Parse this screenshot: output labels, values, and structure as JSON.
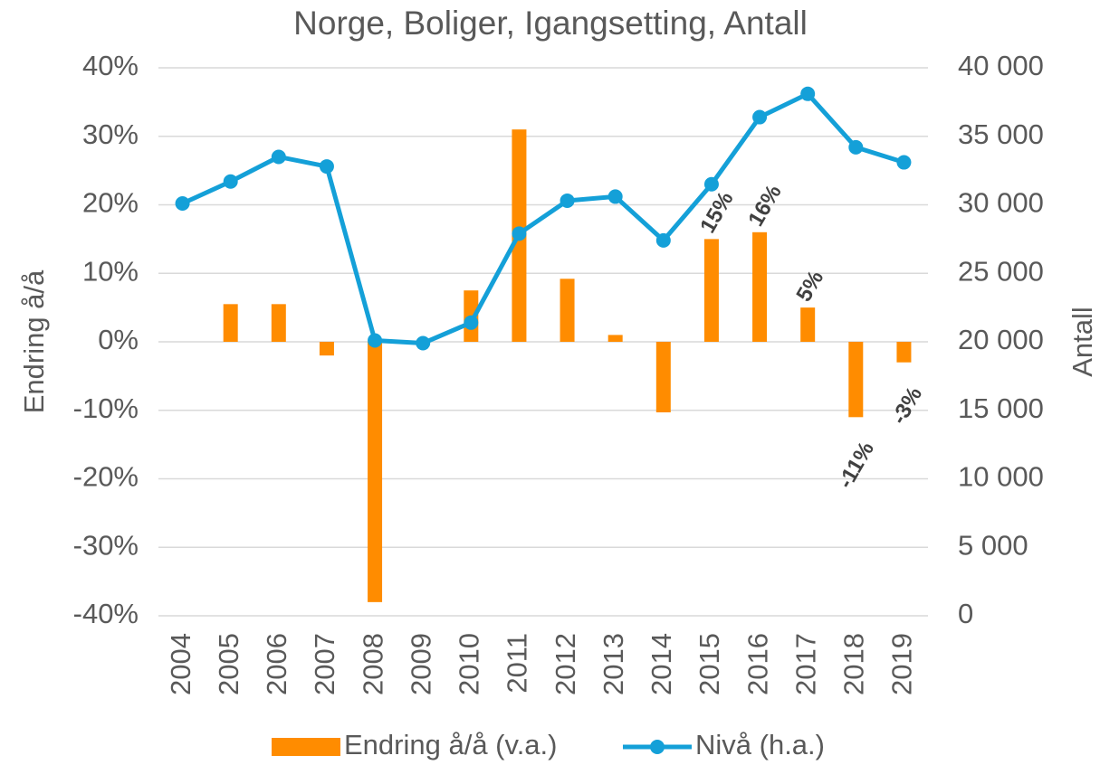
{
  "chart_data": {
    "type": "bar",
    "title": "Norge, Boliger, Igangsetting, Antall",
    "y_label": "Endring å/å",
    "y2_label": "Antall",
    "categories": [
      "2004",
      "2005",
      "2006",
      "2007",
      "2008",
      "2009",
      "2010",
      "2011",
      "2012",
      "2013",
      "2014",
      "2015",
      "2016",
      "2017",
      "2018",
      "2019"
    ],
    "series": [
      {
        "name": "Endring å/å (v.a.)",
        "type": "bar",
        "color": "#ff8c00",
        "values": [
          null,
          5.5,
          5.5,
          -2,
          -38,
          0,
          7.5,
          31,
          9.2,
          1,
          -10.3,
          15,
          16,
          5,
          -11,
          -3
        ],
        "value_labels": [
          null,
          null,
          null,
          null,
          null,
          null,
          null,
          null,
          null,
          null,
          null,
          "15%",
          "16%",
          "5%",
          "-11%",
          "-3%"
        ]
      },
      {
        "name": "Nivå (h.a.)",
        "type": "line",
        "axis": "y2",
        "color": "#14a0d8",
        "values": [
          30100,
          31700,
          33500,
          32800,
          20100,
          19900,
          21400,
          27900,
          30300,
          30600,
          27400,
          31500,
          36400,
          38100,
          34200,
          33100
        ]
      }
    ],
    "ylim": [
      -40,
      40
    ],
    "yticks": [
      {
        "value": -40,
        "label": "-40%"
      },
      {
        "value": -30,
        "label": "-30%"
      },
      {
        "value": -20,
        "label": "-20%"
      },
      {
        "value": -10,
        "label": "-10%"
      },
      {
        "value": 0,
        "label": "0%"
      },
      {
        "value": 10,
        "label": "10%"
      },
      {
        "value": 20,
        "label": "20%"
      },
      {
        "value": 30,
        "label": "30%"
      },
      {
        "value": 40,
        "label": "40%"
      }
    ],
    "y2lim": [
      0,
      40000
    ],
    "y2ticks": [
      0,
      {
        "value": 5000,
        "label": "5 000"
      },
      {
        "value": 10000,
        "label": "10 000"
      },
      {
        "value": 15000,
        "label": "15 000"
      },
      {
        "value": 20000,
        "label": "20 000"
      },
      {
        "value": 25000,
        "label": "25 000"
      },
      {
        "value": 30000,
        "label": "30 000"
      },
      {
        "value": 35000,
        "label": "35 000"
      },
      {
        "value": 40000,
        "label": "40 000"
      }
    ],
    "grid": true,
    "legend": "bottom"
  }
}
